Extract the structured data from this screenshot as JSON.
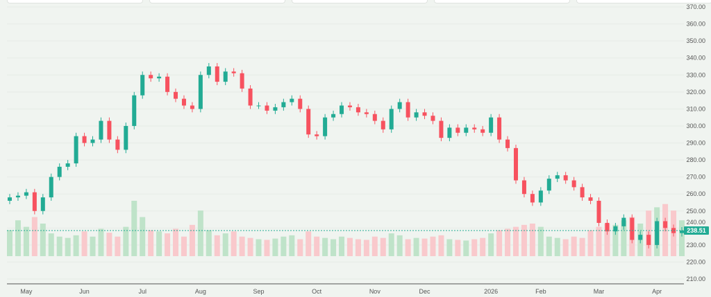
{
  "chart_data": {
    "type": "candlestick",
    "y_ticks": [
      370,
      360,
      350,
      340,
      330,
      320,
      310,
      300,
      290,
      280,
      270,
      260,
      250,
      240,
      230,
      220,
      210
    ],
    "ylim": [
      210,
      370
    ],
    "x_ticks": [
      {
        "label": "May",
        "index": 2
      },
      {
        "label": "Jun",
        "index": 9
      },
      {
        "label": "Jul",
        "index": 16
      },
      {
        "label": "Aug",
        "index": 23
      },
      {
        "label": "Sep",
        "index": 30
      },
      {
        "label": "Oct",
        "index": 37
      },
      {
        "label": "Nov",
        "index": 44
      },
      {
        "label": "Dec",
        "index": 50
      },
      {
        "label": "2026",
        "index": 58
      },
      {
        "label": "Feb",
        "index": 64
      },
      {
        "label": "Mar",
        "index": 71
      },
      {
        "label": "Apr",
        "index": 78
      }
    ],
    "first_open": 256,
    "closes": [
      258,
      259,
      261,
      250,
      258,
      270,
      276,
      278,
      294,
      290,
      292,
      303,
      292,
      286,
      300,
      318,
      330,
      328,
      329,
      320,
      316,
      312,
      310,
      330,
      335,
      326,
      332,
      331,
      322,
      312,
      312,
      309,
      311,
      314,
      316,
      310,
      295,
      294,
      305,
      307,
      312,
      311,
      308,
      307,
      303,
      298,
      310,
      314,
      305,
      308,
      306,
      303,
      293,
      299,
      296,
      299,
      298,
      296,
      305,
      292,
      287,
      268,
      260,
      255,
      262,
      269,
      271,
      268,
      264,
      258,
      256,
      243,
      238,
      241,
      246,
      233,
      236,
      230,
      244,
      240,
      237,
      238.51
    ],
    "volumes": [
      40,
      55,
      45,
      60,
      50,
      35,
      30,
      28,
      32,
      38,
      30,
      42,
      36,
      30,
      45,
      85,
      60,
      40,
      38,
      35,
      42,
      30,
      48,
      70,
      40,
      32,
      35,
      38,
      30,
      28,
      26,
      25,
      27,
      30,
      32,
      26,
      38,
      30,
      28,
      26,
      30,
      28,
      26,
      25,
      30,
      28,
      35,
      32,
      26,
      28,
      27,
      30,
      32,
      26,
      25,
      24,
      26,
      28,
      35,
      40,
      42,
      45,
      48,
      50,
      45,
      30,
      28,
      26,
      30,
      28,
      40,
      45,
      50,
      48,
      55,
      60,
      50,
      70,
      75,
      80,
      70,
      55
    ],
    "current_price": "238.51",
    "current_price_value": 238.51
  },
  "colors": {
    "up": "#22ab94",
    "down": "#f7525f",
    "up_vol": "#bfe3c9",
    "down_vol": "#f9c9cc"
  }
}
